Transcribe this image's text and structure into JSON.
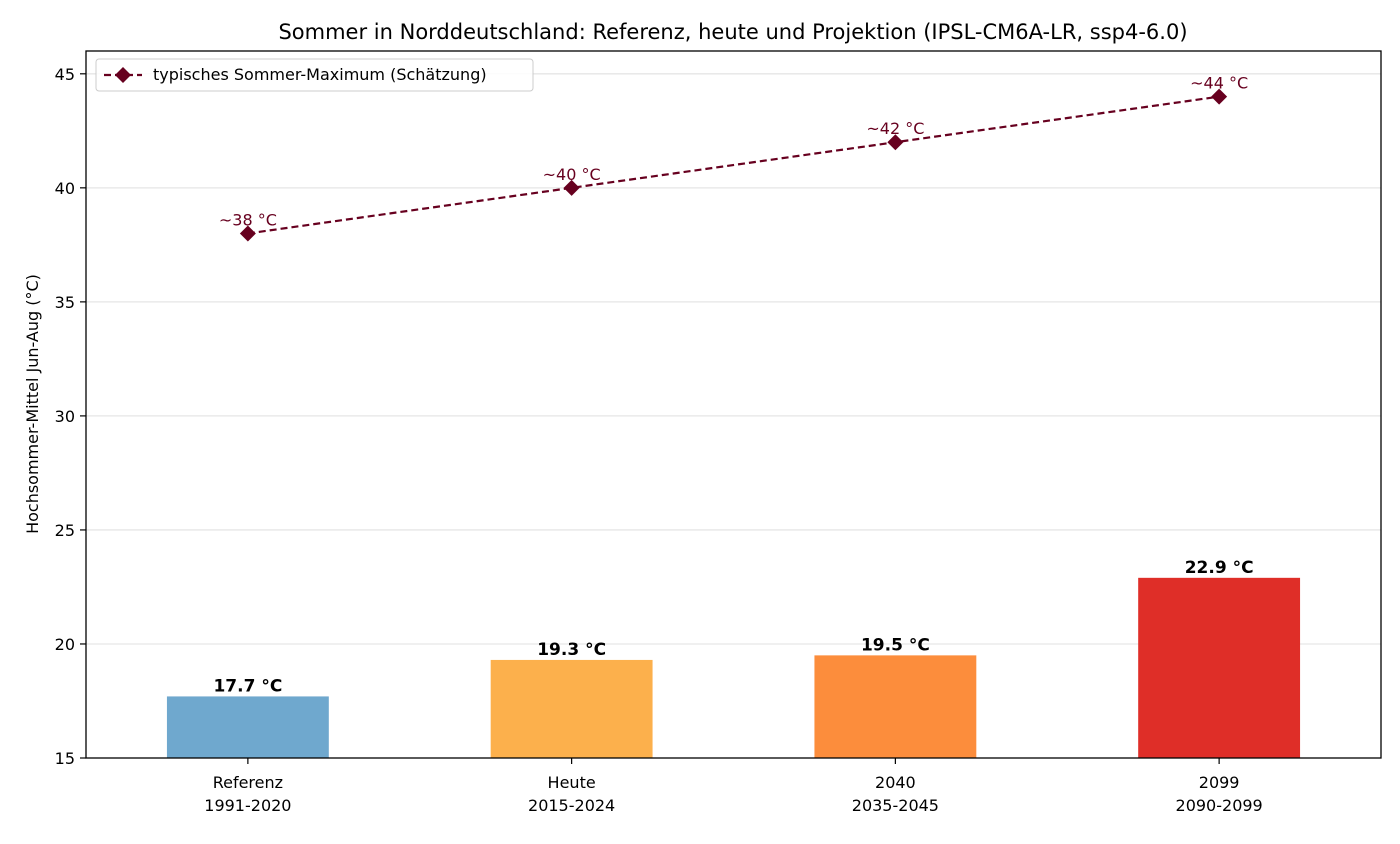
{
  "chart_data": {
    "type": "bar",
    "title": "Sommer in Norddeutschland: Referenz, heute und Projektion (IPSL-CM6A-LR, ssp4-6.0)",
    "xlabel": "",
    "ylabel": "Hochsommer-Mittel Jun-Aug (°C)",
    "ylim": [
      15,
      46
    ],
    "yticks": [
      15,
      20,
      25,
      30,
      35,
      40,
      45
    ],
    "grid": "horizontal",
    "legend_position": "top-left",
    "categories": [
      {
        "line1": "Referenz",
        "line2": "1991-2020"
      },
      {
        "line1": "Heute",
        "line2": "2015-2024"
      },
      {
        "line1": "2040",
        "line2": "2035-2045"
      },
      {
        "line1": "2099",
        "line2": "2090-2099"
      }
    ],
    "bars": {
      "values": [
        17.7,
        19.3,
        19.5,
        22.9
      ],
      "labels": [
        "17.7 °C",
        "19.3 °C",
        "19.5 °C",
        "22.9 °C"
      ],
      "colors": [
        "#6fa8ce",
        "#fcb04c",
        "#fc8d3c",
        "#df2e28"
      ]
    },
    "line_series": {
      "name": "typisches Sommer-Maximum (Schätzung)",
      "values": [
        38,
        40,
        42,
        44
      ],
      "labels": [
        "~38 °C",
        "~40 °C",
        "~42 °C",
        "~44 °C"
      ],
      "color": "#67001f",
      "style": "dashed",
      "marker": "diamond"
    }
  }
}
